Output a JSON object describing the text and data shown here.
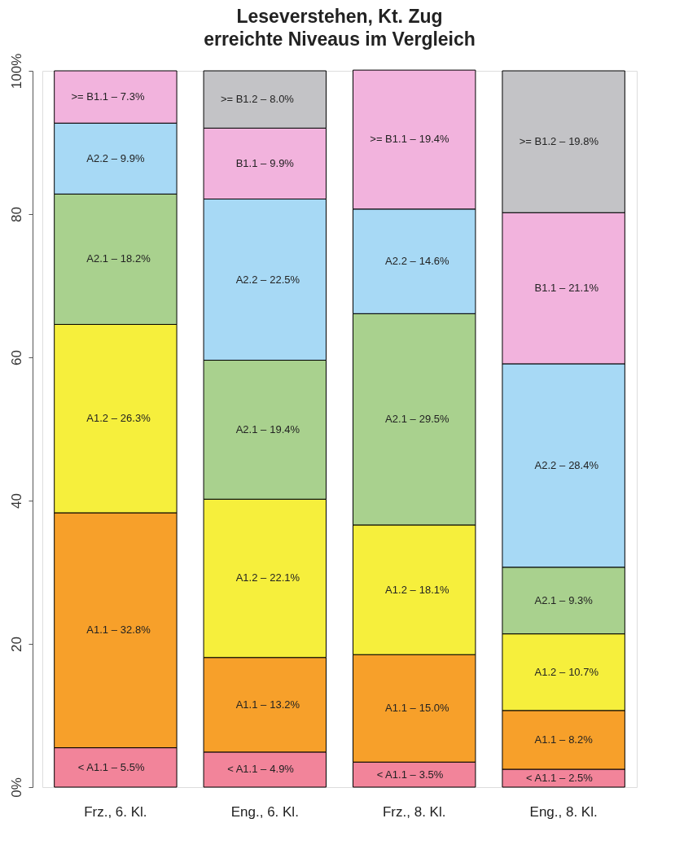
{
  "chart_data": {
    "type": "bar",
    "title": "Leseverstehen, Kt. Zug",
    "subtitle": "erreichte Niveaus im Vergleich",
    "categories": [
      "Frz., 6. Kl.",
      "Eng., 6. Kl.",
      "Frz., 8. Kl.",
      "Eng., 8. Kl."
    ],
    "stacked": true,
    "ylim": [
      0,
      100
    ],
    "yticks": [
      {
        "value": 0,
        "label": "0%"
      },
      20,
      40,
      60,
      80,
      {
        "value": 100,
        "label": "100%"
      }
    ],
    "grid": false,
    "series": [
      {
        "name": "< A1.1 –",
        "color": "#f2849a",
        "values": [
          5.5,
          4.9,
          3.5,
          2.5
        ],
        "value_labels": [
          "5.5%",
          "4.9%",
          "3.5%",
          "2.5%"
        ]
      },
      {
        "name": "A1.1 –",
        "color": "#f7a02a",
        "values": [
          32.8,
          13.2,
          15.0,
          8.2
        ],
        "value_labels": [
          "32.8%",
          "13.2%",
          "15.0%",
          "8.2%"
        ]
      },
      {
        "name": "A1.2 –",
        "color": "#f6ef3c",
        "values": [
          26.3,
          22.1,
          18.1,
          10.7
        ],
        "value_labels": [
          "26.3%",
          "22.1%",
          "18.1%",
          "10.7%"
        ]
      },
      {
        "name": "A2.1 –",
        "color": "#a9d18e",
        "values": [
          18.2,
          19.4,
          29.5,
          9.3
        ],
        "value_labels": [
          "18.2%",
          "19.4%",
          "29.5%",
          "9.3%"
        ]
      },
      {
        "name": "A2.2 –",
        "color": "#a7d9f5",
        "values": [
          9.9,
          22.5,
          14.6,
          28.4
        ],
        "value_labels": [
          "9.9%",
          "22.5%",
          "14.6%",
          "28.4%"
        ]
      },
      {
        "name": "B1.1 –",
        "color": "#f2b3dd",
        "values": [
          null,
          9.9,
          null,
          21.1
        ],
        "value_labels": [
          null,
          "9.9%",
          null,
          "21.1%"
        ]
      },
      {
        "name": ">= B1.1 –",
        "color": "#f2b3dd",
        "values": [
          7.3,
          null,
          19.4,
          null
        ],
        "value_labels": [
          "7.3%",
          null,
          "19.4%",
          null
        ]
      },
      {
        "name": ">= B1.2 –",
        "color": "#c3c3c6",
        "values": [
          null,
          8.0,
          null,
          19.8
        ],
        "value_labels": [
          null,
          "8.0%",
          null,
          "19.8%"
        ]
      }
    ]
  }
}
